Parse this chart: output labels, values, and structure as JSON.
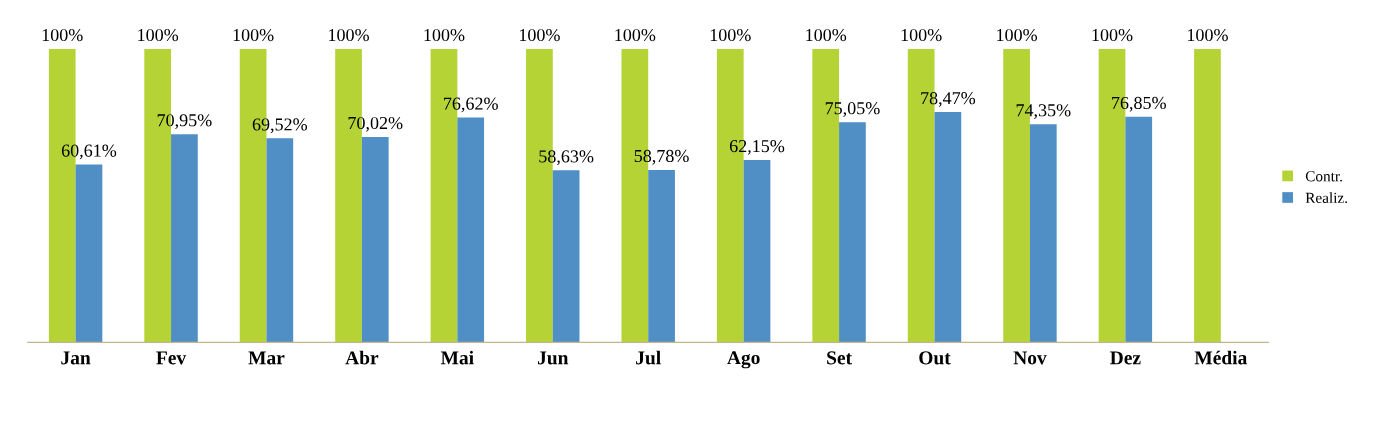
{
  "chart_data": {
    "type": "bar",
    "categories": [
      "Jan",
      "Fev",
      "Mar",
      "Abr",
      "Mai",
      "Jun",
      "Jul",
      "Ago",
      "Set",
      "Out",
      "Nov",
      "Dez",
      "Média"
    ],
    "series": [
      {
        "name": "Contr.",
        "color": "#b5d334",
        "values": [
          100,
          100,
          100,
          100,
          100,
          100,
          100,
          100,
          100,
          100,
          100,
          100,
          100
        ],
        "value_labels": [
          "100%",
          "100%",
          "100%",
          "100%",
          "100%",
          "100%",
          "100%",
          "100%",
          "100%",
          "100%",
          "100%",
          "100%",
          "100%"
        ]
      },
      {
        "name": "Realiz.",
        "color": "#4f8fc6",
        "values": [
          60.61,
          70.95,
          69.52,
          70.02,
          76.62,
          58.63,
          58.78,
          62.15,
          75.05,
          78.47,
          74.35,
          76.85,
          null
        ],
        "value_labels": [
          "60,61%",
          "70,95%",
          "69,52%",
          "70,02%",
          "76,62%",
          "58,63%",
          "58,78%",
          "62,15%",
          "75,05%",
          "78,47%",
          "74,35%",
          "76,85%",
          null
        ]
      }
    ],
    "legend": "right",
    "grid": false
  }
}
